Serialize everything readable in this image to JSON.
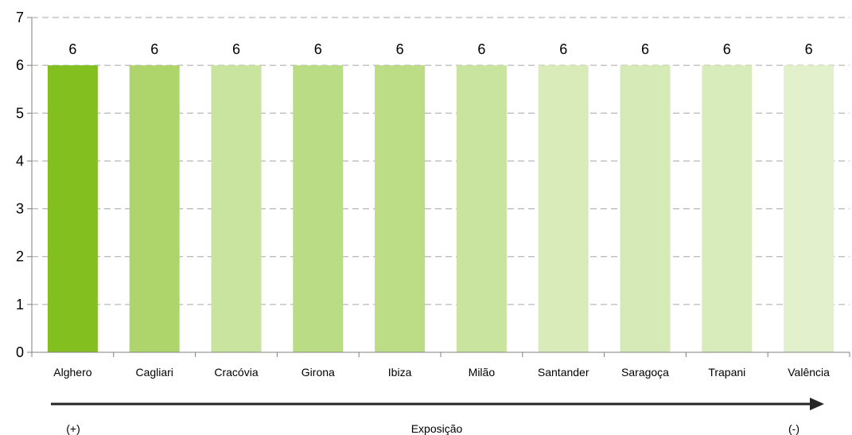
{
  "chart_data": {
    "type": "bar",
    "categories": [
      "Alghero",
      "Cagliari",
      "Cracóvia",
      "Girona",
      "Ibiza",
      "Milão",
      "Santander",
      "Saragoça",
      "Trapani",
      "Valência"
    ],
    "values": [
      6,
      6,
      6,
      6,
      6,
      6,
      6,
      6,
      6,
      6
    ],
    "data_labels": [
      "6",
      "6",
      "6",
      "6",
      "6",
      "6",
      "6",
      "6",
      "6",
      "6"
    ],
    "bar_colors": [
      "#83BF1F",
      "#AED56C",
      "#C8E49F",
      "#BADC84",
      "#BCDC85",
      "#C8E49E",
      "#D8EBB9",
      "#D5EAB6",
      "#D8EBBA",
      "#E2F0CB"
    ],
    "ylim": [
      0,
      7
    ],
    "yticks": [
      "0",
      "1",
      "2",
      "3",
      "4",
      "5",
      "6",
      "7"
    ],
    "grid": "dashed horizontal",
    "title": "",
    "xlabel": "",
    "ylabel": ""
  },
  "footer": {
    "left": "(+)",
    "center": "Exposição",
    "right": "(-)",
    "arrow_color": "#262626"
  }
}
